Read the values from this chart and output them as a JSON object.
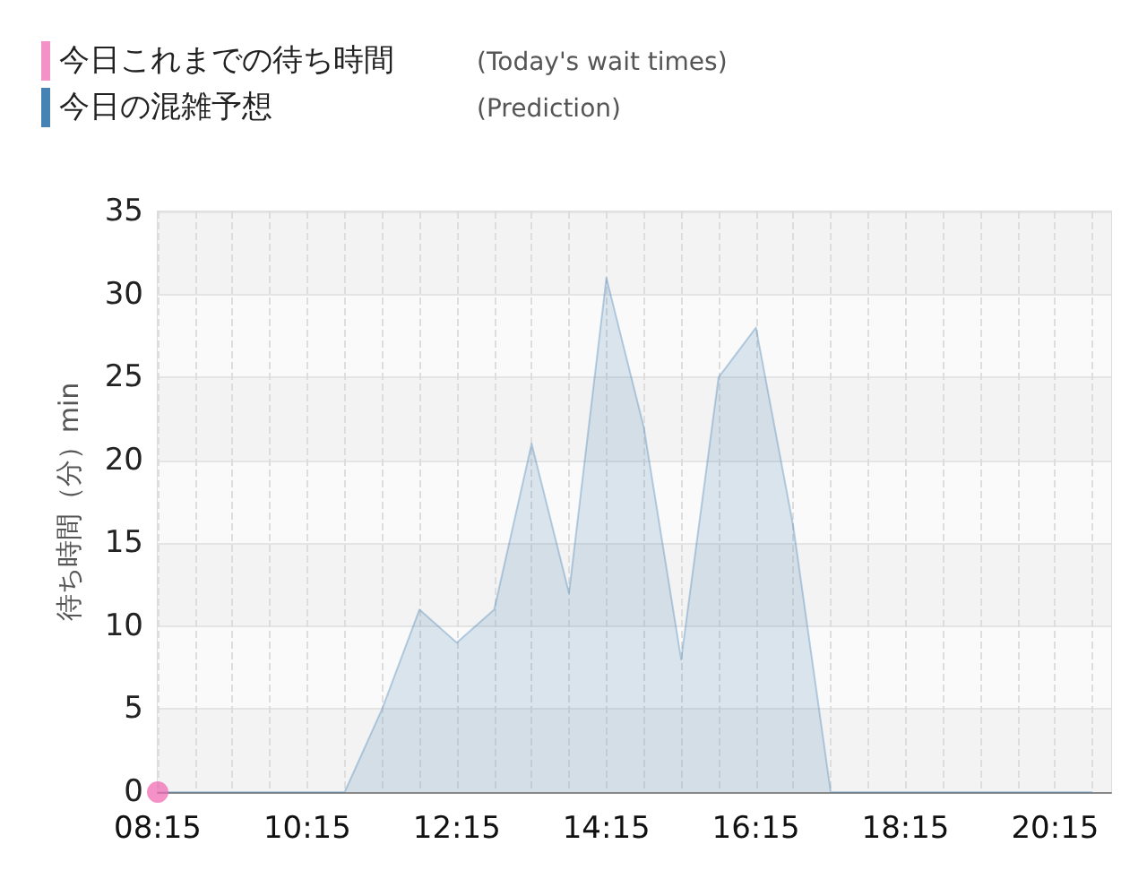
{
  "chart_data": {
    "type": "area",
    "ylabel": "待ち時間（分）min",
    "annotations": [
      "(Today's wait times)",
      "(Prediction)"
    ],
    "xlim": [
      8.25,
      21
    ],
    "xticks": [
      {
        "value": 8.25,
        "label": "08:15"
      },
      {
        "value": 8.75,
        "label": null
      },
      {
        "value": 9.25,
        "label": null
      },
      {
        "value": 9.75,
        "label": null
      },
      {
        "value": 10.25,
        "label": "10:15"
      },
      {
        "value": 10.75,
        "label": null
      },
      {
        "value": 11.25,
        "label": null
      },
      {
        "value": 11.75,
        "label": null
      },
      {
        "value": 12.25,
        "label": "12:15"
      },
      {
        "value": 12.75,
        "label": null
      },
      {
        "value": 13.25,
        "label": null
      },
      {
        "value": 13.75,
        "label": null
      },
      {
        "value": 14.25,
        "label": "14:15"
      },
      {
        "value": 14.75,
        "label": null
      },
      {
        "value": 15.25,
        "label": null
      },
      {
        "value": 15.75,
        "label": null
      },
      {
        "value": 16.25,
        "label": "16:15"
      },
      {
        "value": 16.75,
        "label": null
      },
      {
        "value": 17.25,
        "label": null
      },
      {
        "value": 17.75,
        "label": null
      },
      {
        "value": 18.25,
        "label": "18:15"
      },
      {
        "value": 18.75,
        "label": null
      },
      {
        "value": 19.25,
        "label": null
      },
      {
        "value": 19.75,
        "label": null
      },
      {
        "value": 20.25,
        "label": "20:15"
      },
      {
        "value": 20.75,
        "label": null
      }
    ],
    "ylim": [
      0,
      35
    ],
    "yticks": [
      0,
      5,
      10,
      15,
      20,
      25,
      30,
      35
    ],
    "grid": true,
    "legend": "top left",
    "marker": "none",
    "series": [
      {
        "name": "今日これまでの待ち時間",
        "type": "scatter",
        "marker": "circle",
        "color": "#f06eb4",
        "x": [
          8.25
        ],
        "values": [
          0
        ]
      },
      {
        "name": "今日の混雑予想",
        "color": "#4682b4",
        "x": [
          8.25,
          8.75,
          9.25,
          9.75,
          10.25,
          10.75,
          11.25,
          11.75,
          12.25,
          12.75,
          13.25,
          13.75,
          14.25,
          14.75,
          15.25,
          15.75,
          16.25,
          16.75,
          17.25,
          17.75,
          18.25,
          18.75,
          19.25,
          19.75,
          20.25,
          20.75
        ],
        "values": [
          0,
          0,
          0,
          0,
          0,
          0,
          5,
          11,
          9,
          11,
          21,
          12,
          31,
          22,
          8,
          25,
          28,
          16,
          0,
          0,
          0,
          0,
          0,
          0,
          0,
          0
        ]
      }
    ]
  }
}
